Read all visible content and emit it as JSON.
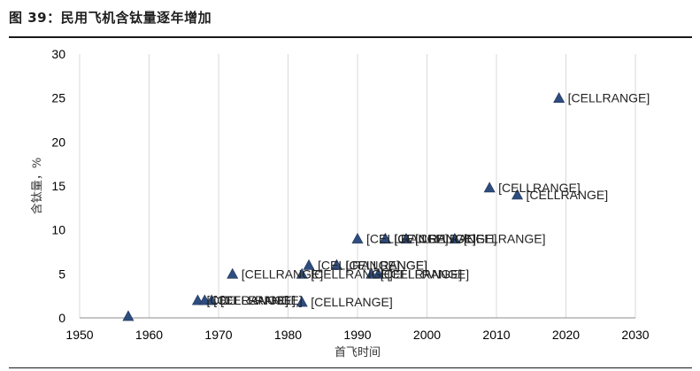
{
  "figure_title": "图 39：民用飞机含钛量逐年增加",
  "chart_data": {
    "type": "scatter",
    "xlabel": "首飞时间",
    "ylabel": "含钛量，%",
    "xlim": [
      1950,
      2030
    ],
    "ylim": [
      0,
      30
    ],
    "xticks": [
      1950,
      1960,
      1970,
      1980,
      1990,
      2000,
      2010,
      2020,
      2030
    ],
    "yticks": [
      0,
      5,
      10,
      15,
      20,
      25,
      30
    ],
    "grid": "vertical",
    "legend": "none",
    "marker": "triangle",
    "marker_color": "#2e4d7e",
    "points": [
      {
        "x": 1957,
        "y": 0.2,
        "label": ""
      },
      {
        "x": 1967,
        "y": 2,
        "label": "[CELLRANGE]"
      },
      {
        "x": 1968,
        "y": 2,
        "label": "[CELLRANGE]"
      },
      {
        "x": 1969,
        "y": 2,
        "label": "[CELLRANGE]"
      },
      {
        "x": 1972,
        "y": 5,
        "label": "[CELLRANGE]"
      },
      {
        "x": 1982,
        "y": 1.8,
        "label": "[CELLRANGE]"
      },
      {
        "x": 1982,
        "y": 5,
        "label": "[CELLRANGE]"
      },
      {
        "x": 1983,
        "y": 6,
        "label": "[CELLRANGE]"
      },
      {
        "x": 1987,
        "y": 6,
        "label": "[CELLRANGE]"
      },
      {
        "x": 1987,
        "y": 6,
        "label": "[CELLRANGE]"
      },
      {
        "x": 1990,
        "y": 9,
        "label": "[CELLRANGE]"
      },
      {
        "x": 1993,
        "y": 5,
        "label": "[CELLRANGE]"
      },
      {
        "x": 1994,
        "y": 9,
        "label": "[CELLRANGE]"
      },
      {
        "x": 1994,
        "y": 9,
        "label": "[CELLRANGE]"
      },
      {
        "x": 1997,
        "y": 9,
        "label": "[CELLRANGE]"
      },
      {
        "x": 2004,
        "y": 9,
        "label": "[CELLRANGE]"
      },
      {
        "x": 2009,
        "y": 14.8,
        "label": "[CELLRANGE]"
      },
      {
        "x": 2013,
        "y": 14,
        "label": "[CELLRANGE]"
      },
      {
        "x": 2019,
        "y": 25,
        "label": "[CELLRANGE]"
      },
      {
        "x": 1992,
        "y": 5,
        "label": "[CELLRANGE]"
      }
    ]
  }
}
